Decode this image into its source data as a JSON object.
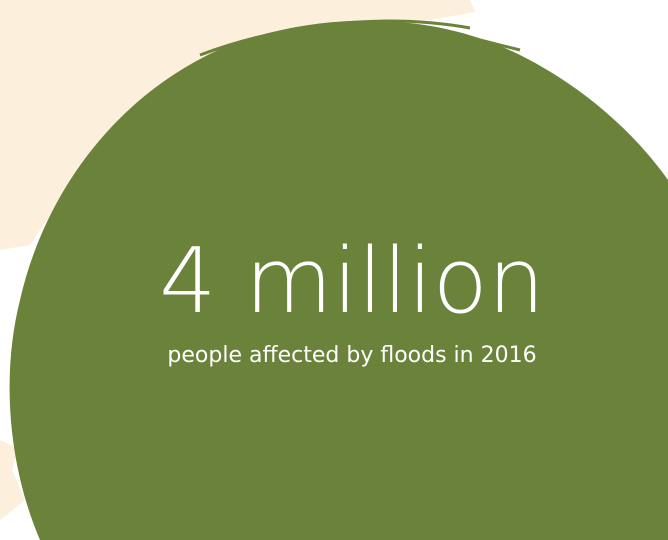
{
  "headline": "4 million",
  "caption": "people affected by floods in 2016"
}
